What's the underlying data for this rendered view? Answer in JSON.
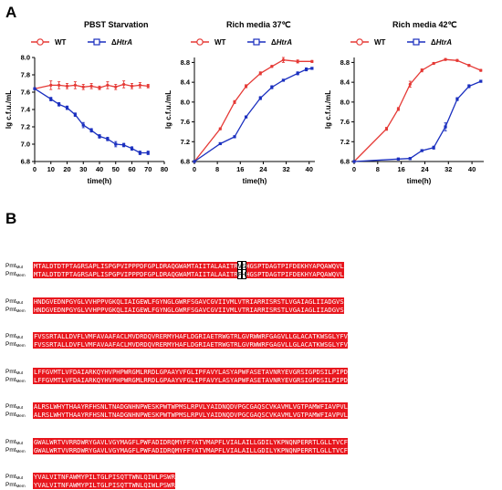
{
  "panel_a_label": "A",
  "panel_b_label": "B",
  "colors": {
    "wt": "#e53935",
    "htra": "#1a2fbf",
    "align_bg": "#e8161d"
  },
  "legend": {
    "wt": "WT",
    "htra_prefix": "Δ",
    "htra_italic": "HtrA"
  },
  "chart_data": [
    {
      "type": "line",
      "title": "PBST  Starvation",
      "xlabel": "time(h)",
      "ylabel": "lg c.f.u./mL",
      "xlim": [
        0,
        80
      ],
      "ylim": [
        6.8,
        8.0
      ],
      "xticks": [
        "0",
        "10",
        "20",
        "30",
        "40",
        "50",
        "60",
        "70",
        "80"
      ],
      "yticks": [
        "6.8",
        "7.0",
        "7.2",
        "7.4",
        "7.6",
        "7.8",
        "8.0"
      ],
      "series": [
        {
          "name": "WT",
          "x": [
            0,
            10,
            15,
            20,
            25,
            30,
            35,
            40,
            45,
            50,
            55,
            60,
            65,
            70
          ],
          "y": [
            7.64,
            7.68,
            7.68,
            7.67,
            7.68,
            7.66,
            7.67,
            7.65,
            7.68,
            7.66,
            7.69,
            7.67,
            7.68,
            7.67
          ],
          "err": [
            0,
            0.05,
            0.04,
            0.03,
            0.04,
            0.03,
            0.03,
            0.02,
            0.04,
            0.03,
            0.04,
            0.03,
            0.03,
            0.02
          ]
        },
        {
          "name": "ΔHtrA",
          "x": [
            0,
            10,
            15,
            20,
            25,
            30,
            35,
            40,
            45,
            50,
            55,
            60,
            65,
            70
          ],
          "y": [
            7.64,
            7.52,
            7.46,
            7.42,
            7.34,
            7.22,
            7.16,
            7.09,
            7.06,
            7.0,
            6.99,
            6.95,
            6.9,
            6.9
          ],
          "err": [
            0,
            0.02,
            0.02,
            0.02,
            0.02,
            0.03,
            0.02,
            0.02,
            0.02,
            0.03,
            0.02,
            0.02,
            0.02,
            0.02
          ]
        }
      ]
    },
    {
      "type": "line",
      "title": "Rich media 37℃",
      "xlabel": "time(h)",
      "ylabel": "lg c.f.u./mL",
      "xlim": [
        0,
        42
      ],
      "ylim": [
        6.8,
        8.9
      ],
      "xticks": [
        "0",
        "8",
        "16",
        "24",
        "32",
        "40"
      ],
      "yticks": [
        "6.8",
        "7.2",
        "7.6",
        "8.0",
        "8.4",
        "8.8"
      ],
      "series": [
        {
          "name": "WT",
          "x": [
            0,
            9,
            14,
            18,
            23,
            27,
            31,
            36,
            41
          ],
          "y": [
            6.8,
            7.46,
            8.0,
            8.32,
            8.58,
            8.72,
            8.85,
            8.82,
            8.82
          ],
          "err": [
            0,
            0.02,
            0.03,
            0.03,
            0.03,
            0.02,
            0.05,
            0.03,
            0.02
          ]
        },
        {
          "name": "ΔHtrA",
          "x": [
            0,
            9,
            14,
            18,
            23,
            27,
            31,
            36,
            39,
            41
          ],
          "y": [
            6.8,
            7.16,
            7.3,
            7.7,
            8.08,
            8.3,
            8.44,
            8.58,
            8.66,
            8.68
          ],
          "err": [
            0,
            0.02,
            0.02,
            0.02,
            0.03,
            0.03,
            0.02,
            0.03,
            0.03,
            0.02
          ]
        }
      ]
    },
    {
      "type": "line",
      "title": "Rich media 42℃",
      "xlabel": "time(h)",
      "ylabel": "lg c.f.u./mL",
      "xlim": [
        0,
        44
      ],
      "ylim": [
        6.8,
        8.9
      ],
      "xticks": [
        "0",
        "8",
        "16",
        "24",
        "32",
        "40"
      ],
      "yticks": [
        "6.8",
        "7.2",
        "7.6",
        "8.0",
        "8.4",
        "8.8"
      ],
      "series": [
        {
          "name": "WT",
          "x": [
            0,
            11,
            15,
            19,
            23,
            27,
            31,
            35,
            39,
            43
          ],
          "y": [
            6.8,
            7.46,
            7.86,
            8.36,
            8.64,
            8.78,
            8.86,
            8.84,
            8.74,
            8.64
          ],
          "err": [
            0,
            0.03,
            0.03,
            0.06,
            0.03,
            0.02,
            0.02,
            0.02,
            0.02,
            0.02
          ]
        },
        {
          "name": "ΔHtrA",
          "x": [
            0,
            15,
            19,
            23,
            27,
            31,
            35,
            39,
            43
          ],
          "y": [
            6.8,
            6.85,
            6.86,
            7.02,
            7.08,
            7.5,
            8.06,
            8.32,
            8.42
          ],
          "err": [
            0,
            0.02,
            0.02,
            0.02,
            0.03,
            0.08,
            0.03,
            0.03,
            0.02
          ]
        }
      ]
    }
  ],
  "alignment": {
    "name_base": "Pmt",
    "sub_wt": "Mut",
    "sub_mut": "Mem",
    "blocks": [
      {
        "seq1": "MTALDTDTPTAGRSAPLISPGPVIPPPDFGPLDRAQGWAMTAIITALAAITR",
        "d1": "V",
        "mid1": "",
        "d2": "S",
        "rest1": "HGSPTDAGTPIFDEKHYAPQAWQVL",
        "seq2": "MTALDTDTPTAGRSAPLISPGPVIPPPDFGPLDRAQGWAMTAIITALAAITR",
        "e1": "F",
        "mid2": "",
        "e2": "H",
        "rest2": "HGSPTDAGTPIFDEKHYAPQAWQVL"
      },
      {
        "full1": "HNDGVEDNPGYGLVVHPPVGKQLIAIGEWLFGYNGLGWRFSGAVCGVIIVMLVTRIARRISRSTLVGAIAGLIIADGVS",
        "full2": "HNDGVEDNPGYGLVVHPPVGKQLIAIGEWLFGYNGLGWRFSGAVCGVIIVMLVTRIARRISRSTLVGAIAGLIIADGVS"
      },
      {
        "full1": "FVSSRTALLDVFLVMFAVAAFACLMVDRDQVRERMYHAFLDGRIAETRWGTRLGVRWWRFGAGVLLGLACATKWSGLYFV",
        "full2": "FVSSRTALLDVFLVMFAVAAFACLMVDRDQVRERMYHAFLDGRIAETRWGTRLGVRWWRFGAGVLLGLACATKWSGLYFV"
      },
      {
        "full1": "LFFGVMTLVFDAIARKQYHVPHPWRGMLRRDLGPAAYVFGLIPFAVYLASYAPWFASETAVNRYEVGRSIGPDSILPIPD",
        "full2": "LFFGVMTLVFDAIARKQYHVPHPWRGMLRRDLGPAAYVFGLIPFAVYLASYAPWFASETAVNRYEVGRSIGPDSILPIPD"
      },
      {
        "full1": "ALRSLWHYTHAAYRFHSNLTNADGNHNPWESKPWTWPMSLRPVLYAIDNQDVPGCGAQSCVKAVMLVGTPAMWFIAVPVL",
        "full2": "ALRSLWHYTHAAYRFHSNLTNADGNHNPWESKPWTWPMSLRPVLYAIDNQDVPGCGAQSCVKAVMLVGTPAMWFIAVPVL"
      },
      {
        "full1": "GWALWRTVVRRDWRYGAVLVGYMAGFLPWFADIDRQMYFFYATVMAPFLVIALAILLGDILYKPNQNPERRTLGLLTVCF",
        "full2": "GWALWRTVVRRDWRYGAVLVGYMAGFLPWFADIDRQMYFFYATVMAPFLVIALAILLGDILYKPNQNPERRTLGLLTVCF"
      },
      {
        "full1": "YVALVITNFAWMYPILTGLPISQTTWNLQIWLPSWR",
        "full2": "YVALVITNFAWMYPILTGLPISQTTWNLQIWLPSWR"
      }
    ]
  }
}
